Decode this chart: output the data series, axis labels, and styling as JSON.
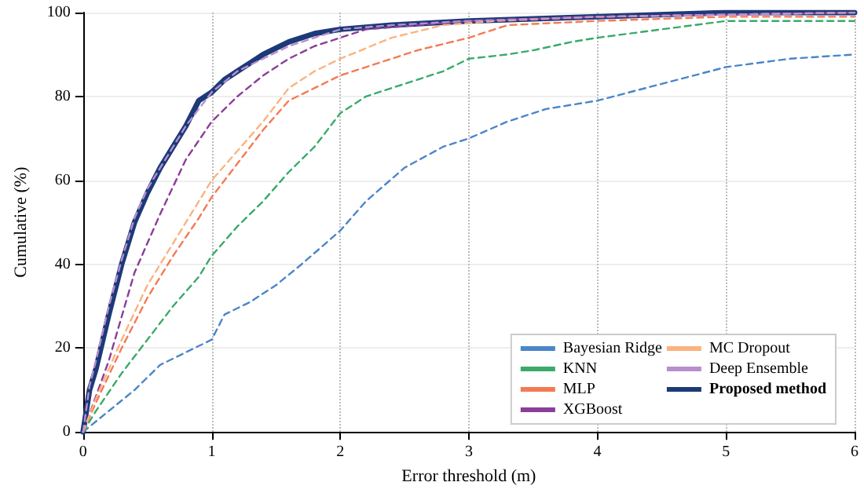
{
  "chart_data": {
    "type": "line",
    "xlabel": "Error threshold (m)",
    "ylabel": "Cumulative (%)",
    "xlim": [
      0,
      6
    ],
    "ylim": [
      0,
      100
    ],
    "xticks": [
      0,
      1,
      2,
      3,
      4,
      5,
      6
    ],
    "yticks": [
      0,
      20,
      40,
      60,
      80,
      100
    ],
    "grid": true,
    "legend": "bottom right",
    "marker": "none",
    "series": [
      {
        "name": "Bayesian Ridge",
        "color": "#4a86c8",
        "line_style": "dashed",
        "x": [
          0,
          0.2,
          0.4,
          0.6,
          0.8,
          1.0,
          1.1,
          1.3,
          1.5,
          1.7,
          2.0,
          2.2,
          2.5,
          2.8,
          3.0,
          3.3,
          3.6,
          4.0,
          4.5,
          5.0,
          5.5,
          6
        ],
        "values": [
          0,
          5,
          10,
          16,
          19,
          22,
          28,
          31,
          35,
          40,
          48,
          55,
          63,
          68,
          70,
          74,
          77,
          79,
          83,
          87,
          89,
          90
        ]
      },
      {
        "name": "KNN",
        "color": "#3aaa6a",
        "line_style": "dashed",
        "x": [
          0,
          0.1,
          0.3,
          0.5,
          0.7,
          0.9,
          1.0,
          1.2,
          1.4,
          1.6,
          1.8,
          2.0,
          2.2,
          2.5,
          2.8,
          3.0,
          3.3,
          3.5,
          3.8,
          4.0,
          4.5,
          5.0,
          6
        ],
        "values": [
          0,
          5,
          14,
          22,
          30,
          37,
          42,
          49,
          55,
          62,
          68,
          76,
          80,
          83,
          86,
          89,
          90,
          91,
          93,
          94,
          96,
          98,
          98
        ]
      },
      {
        "name": "MLP",
        "color": "#f47a54",
        "line_style": "dashed",
        "x": [
          0,
          0.1,
          0.3,
          0.5,
          0.7,
          0.9,
          1.0,
          1.2,
          1.4,
          1.6,
          1.8,
          2.0,
          2.3,
          2.6,
          3.0,
          3.3,
          4.0,
          5.0,
          6
        ],
        "values": [
          0,
          7,
          20,
          32,
          42,
          51,
          56,
          64,
          72,
          79,
          82,
          85,
          88,
          91,
          94,
          97,
          98,
          99,
          99
        ]
      },
      {
        "name": "XGBoost",
        "color": "#8b3d9a",
        "line_style": "dashed",
        "x": [
          0,
          0.2,
          0.4,
          0.6,
          0.8,
          1.0,
          1.2,
          1.4,
          1.6,
          1.8,
          2.0,
          2.2,
          2.6,
          3.0,
          4.0,
          6
        ],
        "values": [
          0,
          17,
          38,
          52,
          65,
          74,
          80,
          85,
          89,
          92,
          94,
          96,
          97,
          98,
          99,
          100
        ]
      },
      {
        "name": "MC Dropout",
        "color": "#fbb37f",
        "line_style": "dashed",
        "x": [
          0,
          0.1,
          0.3,
          0.5,
          0.7,
          0.9,
          1.0,
          1.2,
          1.4,
          1.6,
          1.8,
          2.0,
          2.4,
          2.8,
          3.2,
          4.0,
          6
        ],
        "values": [
          0,
          8,
          22,
          35,
          45,
          55,
          60,
          67,
          74,
          82,
          86,
          89,
          94,
          97,
          98,
          99,
          100
        ]
      },
      {
        "name": "Deep Ensemble",
        "color": "#b88ed0",
        "line_style": "dashed",
        "x": [
          0,
          0.05,
          0.1,
          0.2,
          0.3,
          0.4,
          0.5,
          0.6,
          0.8,
          1.0,
          1.2,
          1.4,
          1.6,
          1.8,
          2.0,
          2.4,
          3.0,
          4.0,
          6
        ],
        "values": [
          0,
          11,
          17,
          30,
          41,
          51,
          58,
          63,
          73,
          81,
          86,
          89,
          92,
          94,
          96,
          97,
          98,
          99,
          100
        ]
      },
      {
        "name": "Proposed method",
        "color": "#1c3a78",
        "line_style": "solid",
        "x": [
          0,
          0.05,
          0.1,
          0.2,
          0.3,
          0.4,
          0.5,
          0.6,
          0.7,
          0.8,
          0.9,
          1.0,
          1.1,
          1.2,
          1.3,
          1.4,
          1.6,
          1.8,
          2.0,
          2.4,
          3.0,
          4.0,
          5.0,
          6
        ],
        "values": [
          0,
          10,
          15,
          28,
          40,
          50,
          57,
          63,
          68,
          73,
          79,
          81,
          84,
          86,
          88,
          90,
          93,
          95,
          96,
          97,
          98,
          99,
          100,
          100
        ]
      }
    ]
  }
}
